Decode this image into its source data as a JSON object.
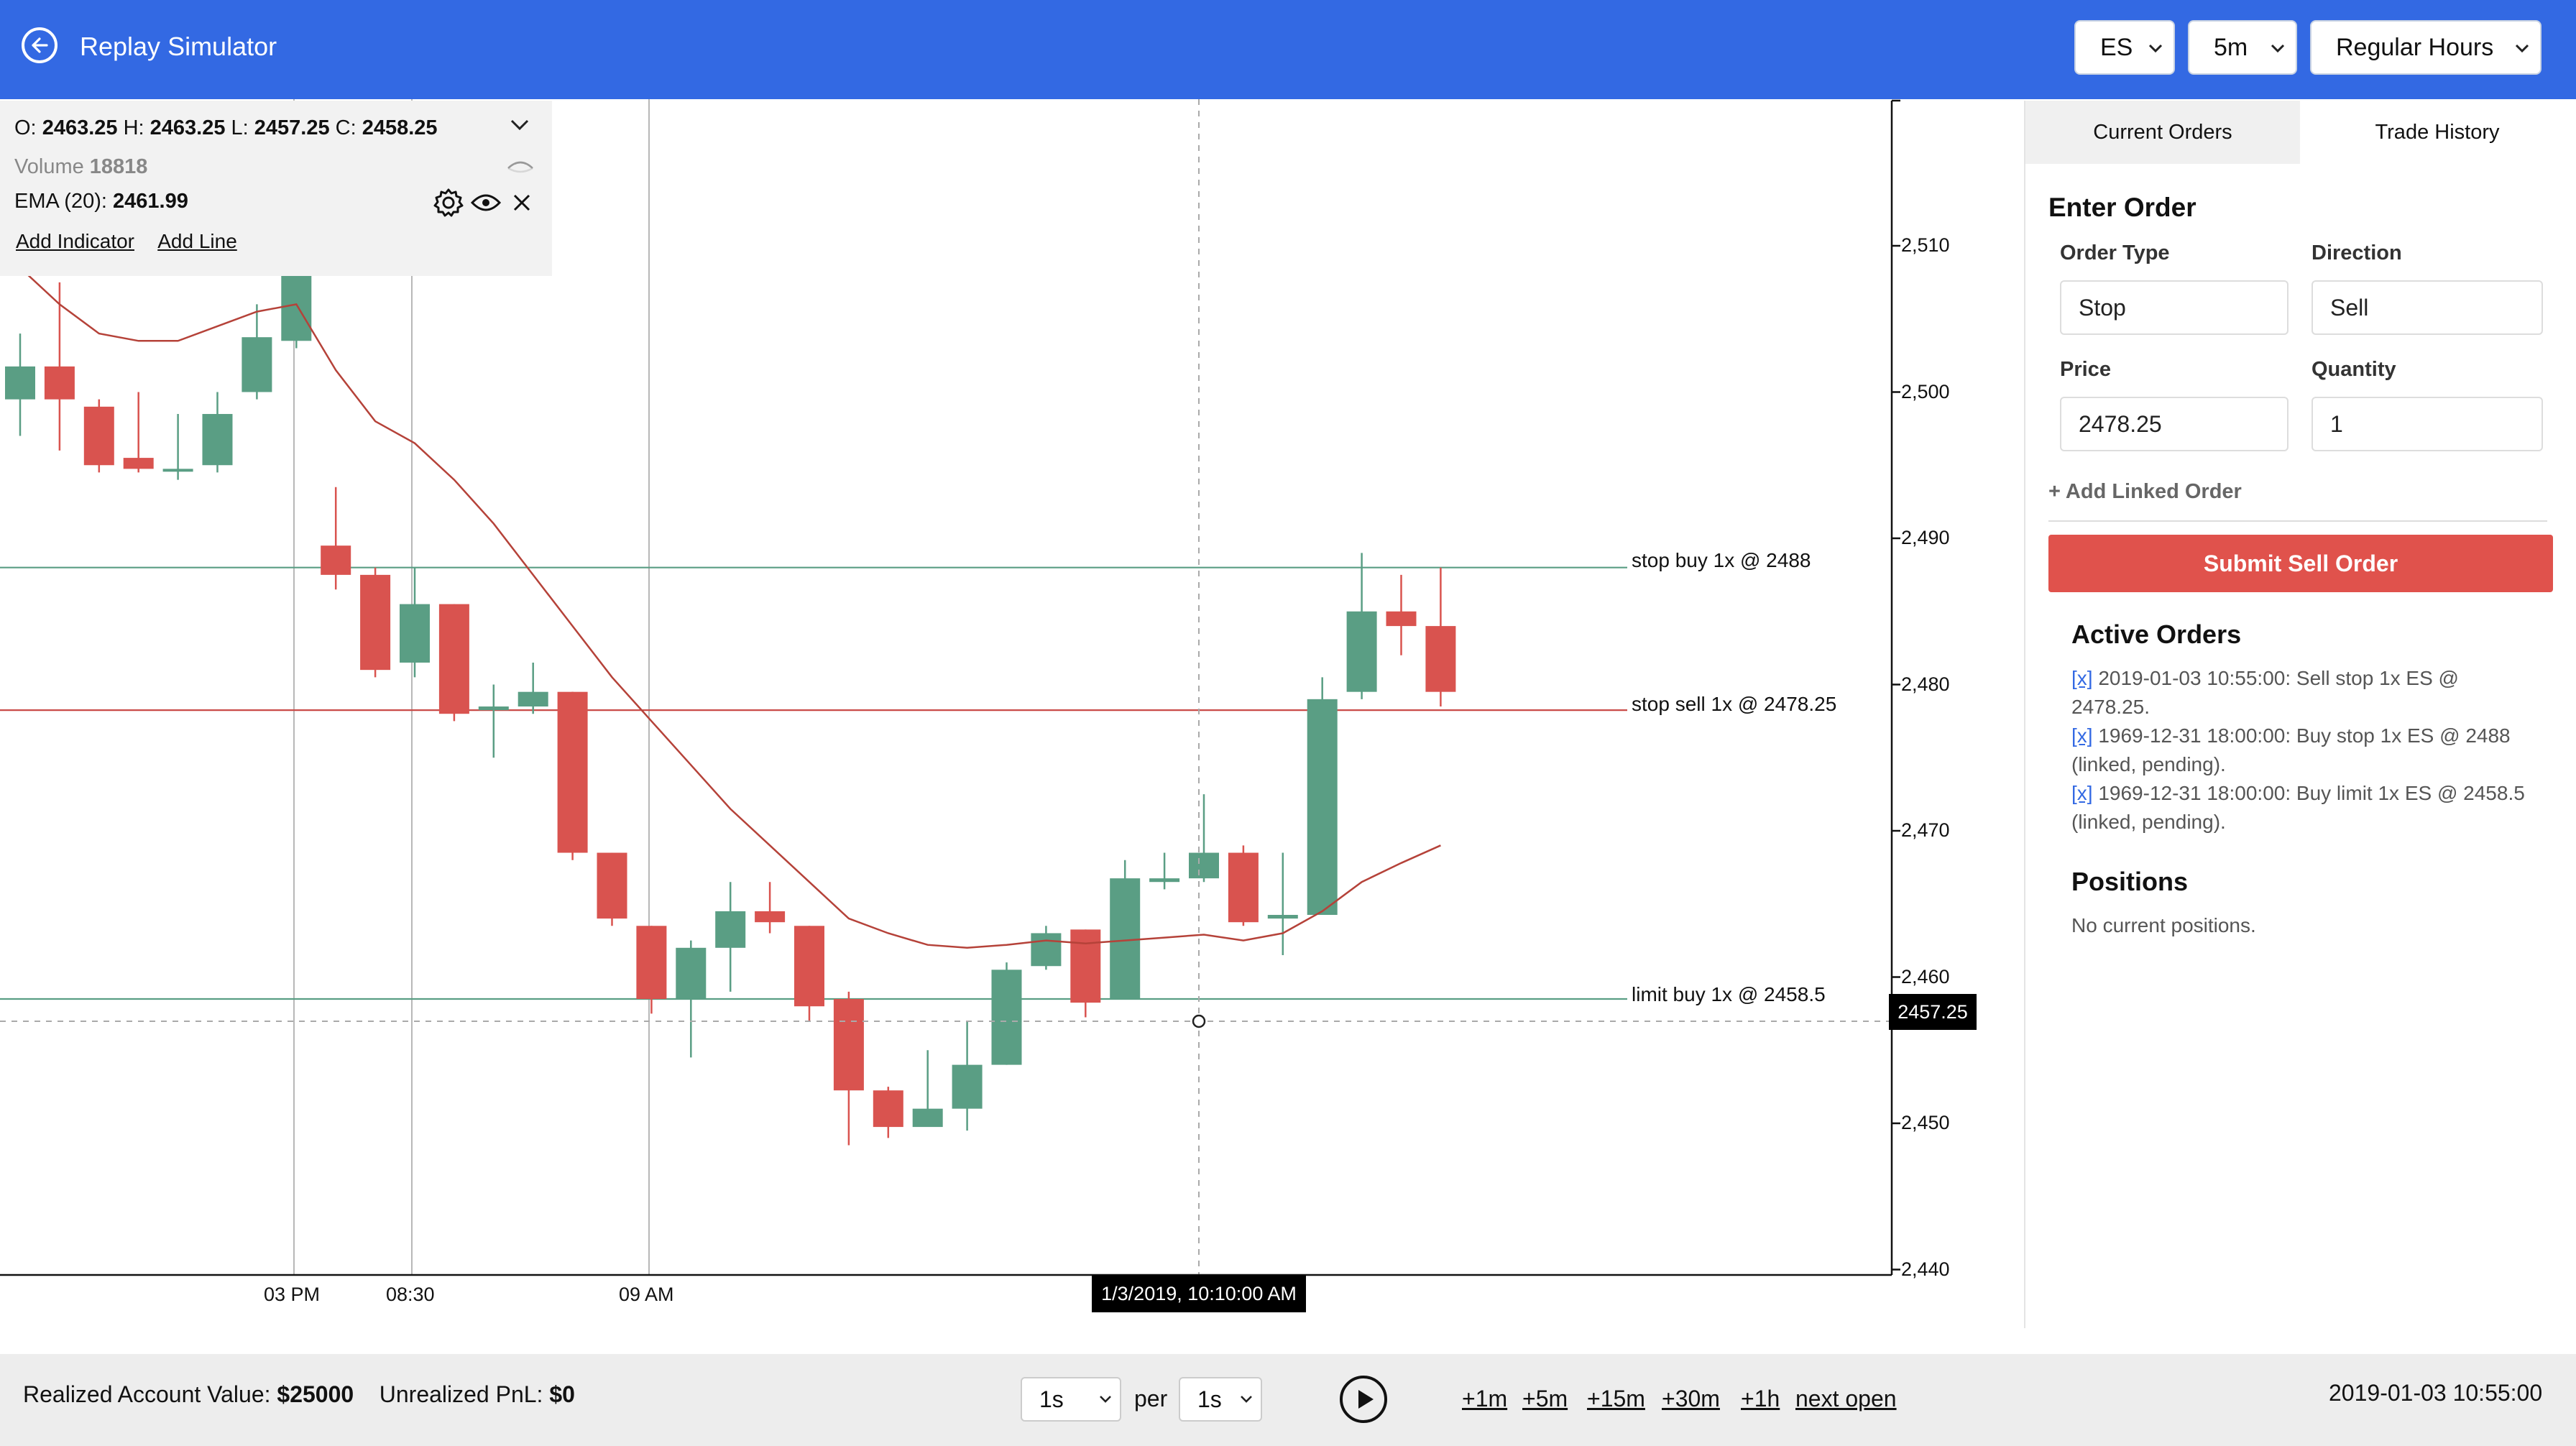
{
  "header": {
    "title": "Replay Simulator",
    "symbol": "ES",
    "timeframe": "5m",
    "session": "Regular Hours"
  },
  "legend": {
    "ohlc": {
      "o_label": "O:",
      "o": "2463.25",
      "h_label": "H:",
      "h": "2463.25",
      "l_label": "L:",
      "l": "2457.25",
      "c_label": "C:",
      "c": "2458.25"
    },
    "volume_label": "Volume",
    "volume": "18818",
    "ema_label": "EMA (20):",
    "ema": "2461.99",
    "add_indicator": "Add Indicator",
    "add_line": "Add Line"
  },
  "chart": {
    "order_lines": [
      {
        "label": "stop buy 1x @ 2488",
        "price": 2488,
        "color": "#5a9e84"
      },
      {
        "label": "stop sell 1x @ 2478.25",
        "price": 2478.25,
        "color": "#c94b48"
      },
      {
        "label": "limit buy 1x @ 2458.5",
        "price": 2458.5,
        "color": "#5a9e84"
      }
    ],
    "crosshair_price": "2457.25",
    "crosshair_time": "1/3/2019, 10:10:00 AM",
    "y_ticks": [
      "2,510",
      "2,500",
      "2,490",
      "2,480",
      "2,470",
      "2,460",
      "2,450",
      "2,440"
    ],
    "x_ticks": [
      "03 PM",
      "08:30",
      "09 AM"
    ],
    "up_color": "#5a9e84",
    "down_color": "#d9534f",
    "ema_color": "#b54239"
  },
  "chart_data": {
    "type": "candlestick",
    "ylim": [
      2440,
      2520
    ],
    "ohlc": [
      [
        2499.5,
        2501.75,
        2497,
        2504
      ],
      [
        2501.75,
        2499.5,
        2496,
        2507.5
      ],
      [
        2499,
        2495,
        2494.5,
        2499.5
      ],
      [
        2495.5,
        2494.75,
        2494.5,
        2500
      ],
      [
        2494.75,
        2494.75,
        2494,
        2498.5
      ],
      [
        2495,
        2498.5,
        2494.5,
        2500
      ],
      [
        2500,
        2503.75,
        2499.5,
        2506
      ],
      [
        2503.5,
        2508.5,
        2503,
        2510
      ],
      [
        2489.5,
        2487.5,
        2486.5,
        2493.5
      ],
      [
        2487.5,
        2481,
        2480.5,
        2488
      ],
      [
        2481.5,
        2485.5,
        2480.5,
        2488
      ],
      [
        2485.5,
        2478,
        2477.5,
        2485.5
      ],
      [
        2478.25,
        2478.5,
        2475,
        2480
      ],
      [
        2478.5,
        2479.5,
        2478,
        2481.5
      ],
      [
        2479.5,
        2468.5,
        2468,
        2479.5
      ],
      [
        2468.5,
        2464,
        2463.5,
        2468.5
      ],
      [
        2463.5,
        2458.5,
        2457.5,
        2463.5
      ],
      [
        2458.5,
        2462,
        2454.5,
        2462.5
      ],
      [
        2462,
        2464.5,
        2459,
        2466.5
      ],
      [
        2464.5,
        2463.75,
        2463,
        2466.5
      ],
      [
        2463.5,
        2458,
        2457,
        2463.5
      ],
      [
        2458.5,
        2452.25,
        2448.5,
        2459
      ],
      [
        2452.25,
        2449.75,
        2449,
        2452.5
      ],
      [
        2449.75,
        2451,
        2450,
        2455
      ],
      [
        2451,
        2454,
        2449.5,
        2457
      ],
      [
        2454,
        2460.5,
        2454,
        2461
      ],
      [
        2460.75,
        2463,
        2460.5,
        2463.5
      ],
      [
        2463.25,
        2458.25,
        2457.25,
        2463.25
      ],
      [
        2458.5,
        2466.75,
        2458.5,
        2468
      ],
      [
        2466.5,
        2466.75,
        2466,
        2468.5
      ],
      [
        2466.75,
        2468.5,
        2466.5,
        2472.5
      ],
      [
        2468.5,
        2463.75,
        2463.5,
        2469
      ],
      [
        2464,
        2464.25,
        2461.5,
        2468.5
      ],
      [
        2464.25,
        2479,
        2464.25,
        2480.5
      ],
      [
        2479.5,
        2485,
        2479,
        2489
      ],
      [
        2485,
        2484,
        2482,
        2487.5
      ],
      [
        2484,
        2479.5,
        2478.5,
        2488
      ]
    ],
    "ema": [
      2508.5,
      2506,
      2504,
      2503.5,
      2503.5,
      2504.5,
      2505.5,
      2506,
      2501.5,
      2498,
      2496.5,
      2494,
      2491,
      2487.5,
      2484,
      2480.5,
      2477.5,
      2474.5,
      2471.5,
      2469,
      2466.5,
      2464,
      2463,
      2462.2,
      2462,
      2462.2,
      2462.5,
      2462.3,
      2462.5,
      2462.7,
      2462.9,
      2462.5,
      2463,
      2464.5,
      2466.5,
      2467.8,
      2469
    ]
  },
  "orders_panel": {
    "tabs": [
      "Current Orders",
      "Trade History"
    ],
    "enter_order_title": "Enter Order",
    "order_type_label": "Order Type",
    "order_type": "Stop",
    "direction_label": "Direction",
    "direction": "Sell",
    "price_label": "Price",
    "price": "2478.25",
    "quantity_label": "Quantity",
    "quantity": "1",
    "add_linked": "+ Add Linked Order",
    "submit": "Submit Sell Order",
    "active_orders_title": "Active Orders",
    "cancel_mark": "[x]",
    "active_orders": [
      "2019-01-03 10:55:00: Sell stop 1x ES @ 2478.25.",
      "1969-12-31 18:00:00: Buy stop 1x ES @ 2488 (linked, pending).",
      "1969-12-31 18:00:00: Buy limit 1x ES @ 2458.5 (linked, pending)."
    ],
    "positions_title": "Positions",
    "no_positions": "No current positions."
  },
  "footer": {
    "realized_label": "Realized Account Value:",
    "realized": "$25000",
    "unrealized_label": "Unrealized PnL:",
    "unrealized": "$0",
    "step_value": "1s",
    "per_label": "per",
    "per_value": "1s",
    "steps": [
      "+1m",
      "+5m",
      "+15m",
      "+30m",
      "+1h",
      "next open"
    ],
    "clock": "2019-01-03 10:55:00"
  }
}
